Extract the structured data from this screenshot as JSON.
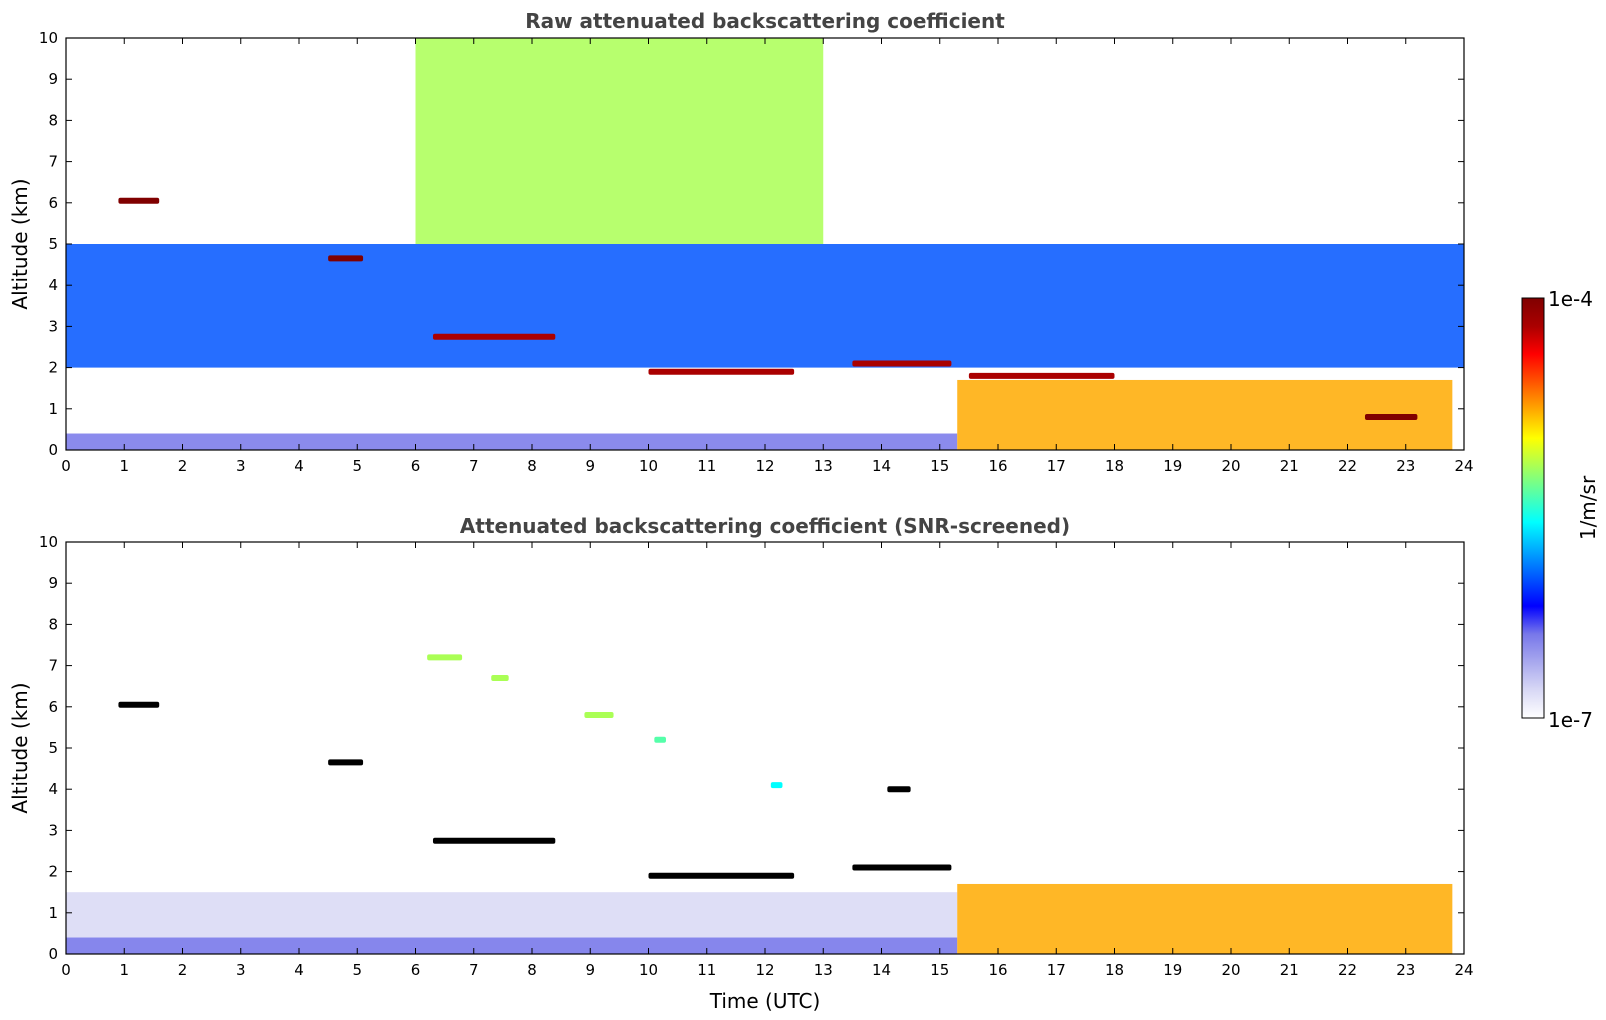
{
  "chart_data": [
    {
      "type": "heatmap",
      "title": "Raw attenuated backscattering coefficient",
      "xlabel": "",
      "ylabel": "Altitude (km)",
      "xlim": [
        0,
        24
      ],
      "ylim": [
        0,
        10
      ],
      "xticks": [
        "0",
        "1",
        "2",
        "3",
        "4",
        "5",
        "6",
        "7",
        "8",
        "9",
        "10",
        "11",
        "12",
        "13",
        "14",
        "15",
        "16",
        "17",
        "18",
        "19",
        "20",
        "21",
        "22",
        "23",
        "24"
      ],
      "yticks": [
        "0",
        "1",
        "2",
        "3",
        "4",
        "5",
        "6",
        "7",
        "8",
        "9",
        "10"
      ],
      "grid": false,
      "layers": [
        {
          "x": [
            0,
            15.3
          ],
          "y": [
            0,
            0.4
          ],
          "level": 0.22
        },
        {
          "x": [
            15.3,
            23.8
          ],
          "y": [
            0,
            1.7
          ],
          "level": 0.72
        },
        {
          "x": [
            0,
            24
          ],
          "y": [
            2,
            5
          ],
          "level": 0.3
        },
        {
          "x": [
            6,
            13
          ],
          "y": [
            5,
            10
          ],
          "level": 0.62
        }
      ],
      "features": [
        {
          "x": [
            0.9,
            1.6
          ],
          "y": 6.05,
          "level": 0.97
        },
        {
          "x": [
            4.5,
            5.1
          ],
          "y": 4.65,
          "level": 0.97
        },
        {
          "x": [
            6.3,
            8.4
          ],
          "y": 2.75,
          "level": 0.95
        },
        {
          "x": [
            10,
            12.5
          ],
          "y": 1.9,
          "level": 0.95
        },
        {
          "x": [
            13.5,
            15.2
          ],
          "y": 2.1,
          "level": 0.95
        },
        {
          "x": [
            15.5,
            18
          ],
          "y": 1.8,
          "level": 0.95
        },
        {
          "x": [
            22.3,
            23.2
          ],
          "y": 0.8,
          "level": 0.97
        }
      ]
    },
    {
      "type": "heatmap",
      "title": "Attenuated backscattering coefficient (SNR-screened)",
      "xlabel": "Time (UTC)",
      "ylabel": "Altitude (km)",
      "xlim": [
        0,
        24
      ],
      "ylim": [
        0,
        10
      ],
      "xticks": [
        "0",
        "1",
        "2",
        "3",
        "4",
        "5",
        "6",
        "7",
        "8",
        "9",
        "10",
        "11",
        "12",
        "13",
        "14",
        "15",
        "16",
        "17",
        "18",
        "19",
        "20",
        "21",
        "22",
        "23",
        "24"
      ],
      "yticks": [
        "0",
        "1",
        "2",
        "3",
        "4",
        "5",
        "6",
        "7",
        "8",
        "9",
        "10"
      ],
      "grid": false,
      "layers": [
        {
          "x": [
            0,
            15.3
          ],
          "y": [
            0,
            1.5
          ],
          "level": 0.08
        },
        {
          "x": [
            0,
            15.3
          ],
          "y": [
            0,
            0.4
          ],
          "level": 0.22
        },
        {
          "x": [
            15.3,
            23.8
          ],
          "y": [
            0,
            1.7
          ],
          "level": 0.72
        }
      ],
      "features": [
        {
          "x": [
            0.9,
            1.6
          ],
          "y": 6.05,
          "level": 1.0
        },
        {
          "x": [
            4.5,
            5.1
          ],
          "y": 4.65,
          "level": 1.0
        },
        {
          "x": [
            6.3,
            8.4
          ],
          "y": 2.75,
          "level": 1.0
        },
        {
          "x": [
            6.2,
            6.8
          ],
          "y": 7.2,
          "level": 0.6
        },
        {
          "x": [
            7.3,
            7.6
          ],
          "y": 6.7,
          "level": 0.6
        },
        {
          "x": [
            8.9,
            9.4
          ],
          "y": 5.8,
          "level": 0.58
        },
        {
          "x": [
            10.1,
            10.3
          ],
          "y": 5.2,
          "level": 0.55
        },
        {
          "x": [
            12.1,
            12.3
          ],
          "y": 4.1,
          "level": 0.45
        },
        {
          "x": [
            14.1,
            14.5
          ],
          "y": 4.0,
          "level": 1.0
        },
        {
          "x": [
            10,
            12.5
          ],
          "y": 1.9,
          "level": 1.0
        },
        {
          "x": [
            13.5,
            15.2
          ],
          "y": 2.1,
          "level": 1.0
        }
      ]
    }
  ],
  "colorbar": {
    "label": "1/m/sr",
    "max_label": "1e-4",
    "min_label": "1e-7",
    "scale": "log",
    "colormap": "jet",
    "colors": [
      "#ffffff",
      "#d8d8f5",
      "#a8a8ee",
      "#7777ea",
      "#0000ff",
      "#0055ff",
      "#00aaff",
      "#00ffff",
      "#55ffaa",
      "#aaff55",
      "#ffff00",
      "#ffaa00",
      "#ff5500",
      "#ff0000",
      "#aa0000",
      "#800000"
    ]
  }
}
